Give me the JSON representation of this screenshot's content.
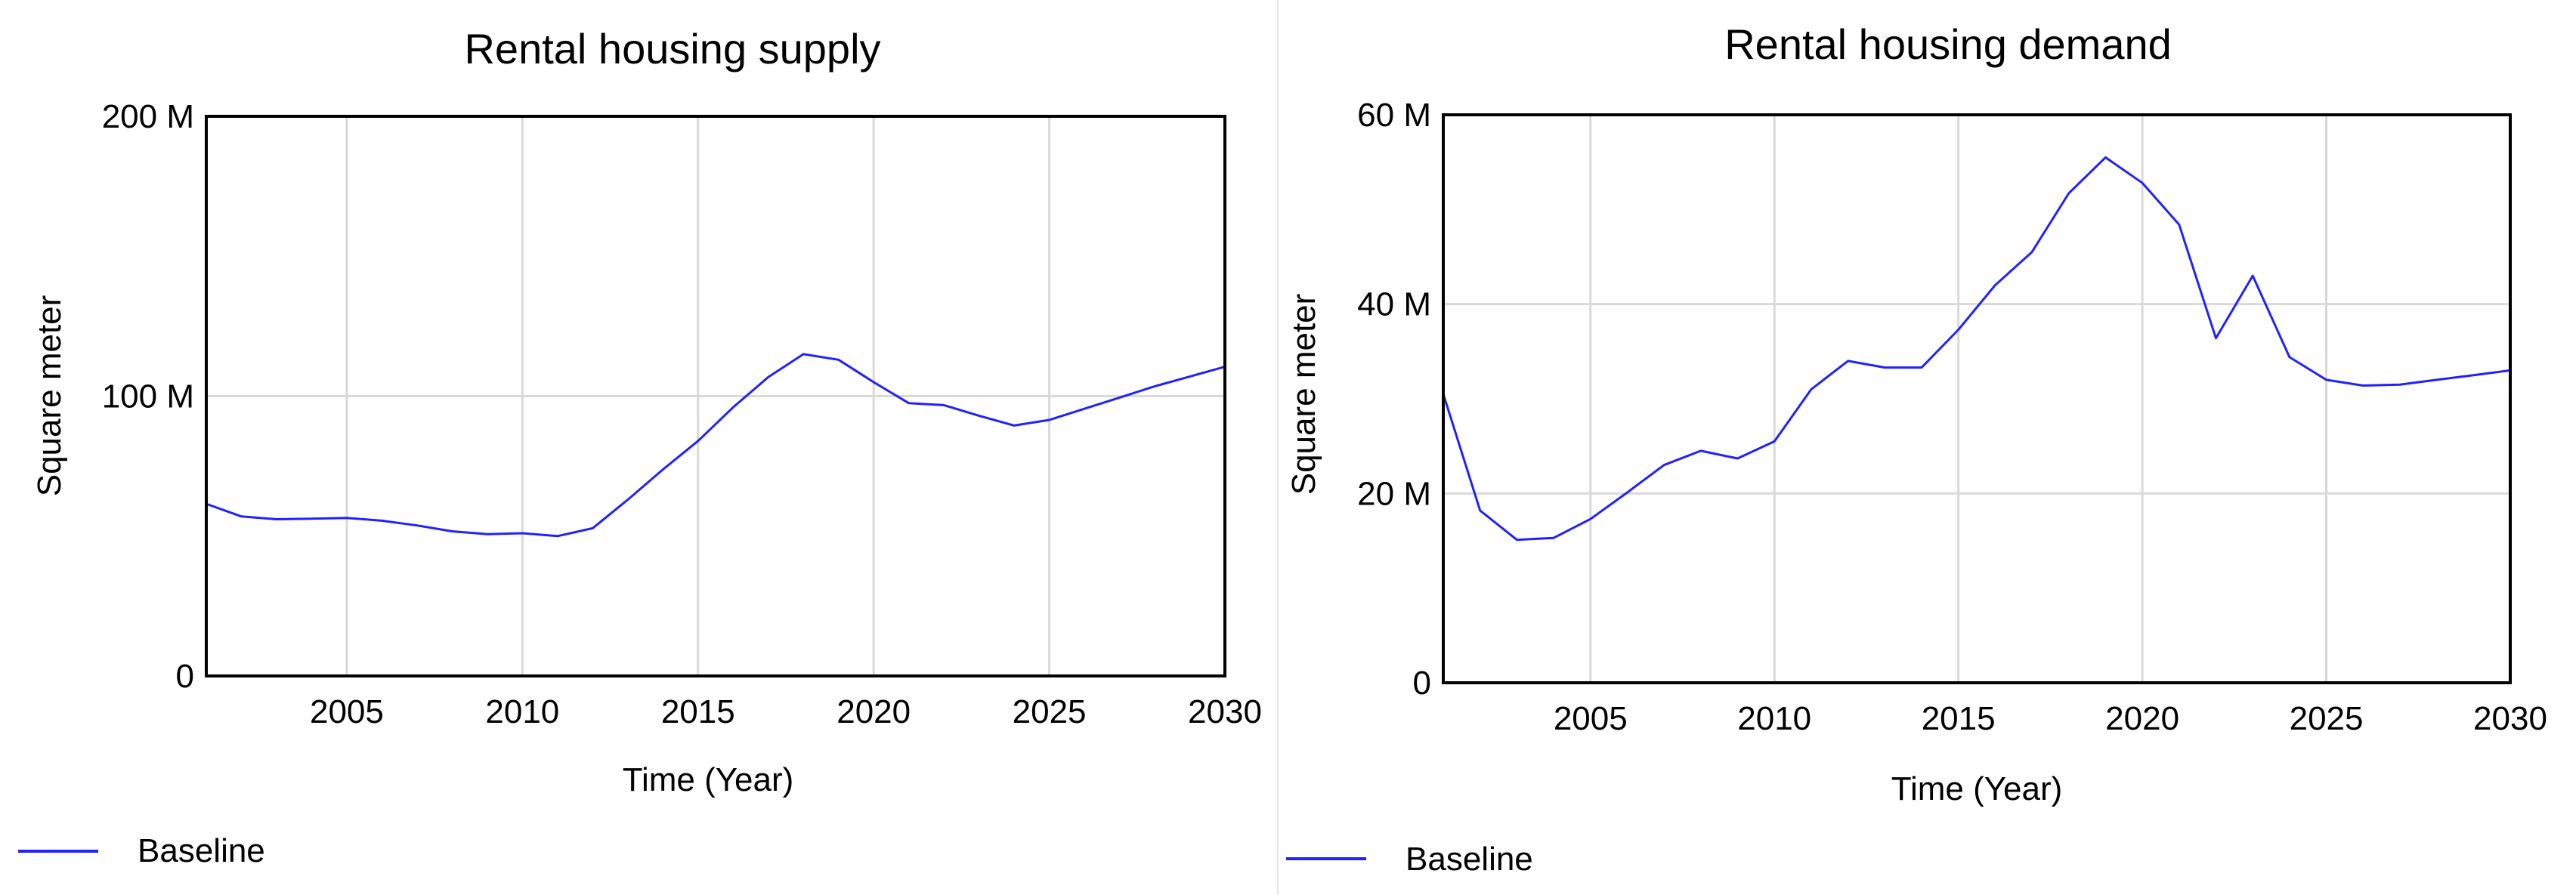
{
  "chart_data": [
    {
      "type": "line",
      "title": "Rental housing supply",
      "xlabel": "Time (Year)",
      "ylabel": "Square meter",
      "xlim": [
        2001,
        2030
      ],
      "ylim": [
        0,
        200000000
      ],
      "x_ticks": [
        2005,
        2010,
        2015,
        2020,
        2025,
        2030
      ],
      "x_tick_labels": [
        "2005",
        "2010",
        "2015",
        "2020",
        "2025",
        "2030"
      ],
      "y_ticks": [
        0,
        100000000,
        200000000
      ],
      "y_tick_labels": [
        "0",
        "100 M",
        "200 M"
      ],
      "grid": true,
      "legend_position": "bottom-left",
      "series_color": "#2121ff",
      "series": [
        {
          "name": "Baseline",
          "x": [
            2001,
            2002,
            2003,
            2004,
            2005,
            2006,
            2007,
            2008,
            2009,
            2010,
            2011,
            2012,
            2013,
            2014,
            2015,
            2016,
            2017,
            2018,
            2019,
            2020,
            2021,
            2022,
            2023,
            2024,
            2025,
            2026,
            2027,
            2028,
            2029,
            2030
          ],
          "y": [
            61500000,
            57000000,
            56000000,
            56200000,
            56500000,
            55500000,
            53800000,
            51700000,
            50700000,
            51000000,
            50000000,
            52800000,
            63000000,
            73800000,
            84000000,
            96000000,
            106800000,
            115000000,
            113000000,
            105000000,
            97500000,
            96800000,
            93000000,
            89500000,
            91500000,
            95500000,
            99500000,
            103500000,
            107000000,
            110500000
          ]
        }
      ]
    },
    {
      "type": "line",
      "title": "Rental housing demand",
      "xlabel": "Time (Year)",
      "ylabel": "Square meter",
      "xlim": [
        2001,
        2030
      ],
      "ylim": [
        0,
        60000000
      ],
      "x_ticks": [
        2005,
        2010,
        2015,
        2020,
        2025,
        2030
      ],
      "x_tick_labels": [
        "2005",
        "2010",
        "2015",
        "2020",
        "2025",
        "2030"
      ],
      "y_ticks": [
        0,
        20000000,
        40000000,
        60000000
      ],
      "y_tick_labels": [
        "0",
        "20 M",
        "40 M",
        "60 M"
      ],
      "grid": true,
      "legend_position": "bottom-left",
      "series_color": "#2121ff",
      "series": [
        {
          "name": "Baseline",
          "x": [
            2001,
            2002,
            2003,
            2004,
            2005,
            2006,
            2007,
            2008,
            2009,
            2010,
            2011,
            2012,
            2013,
            2014,
            2015,
            2016,
            2017,
            2018,
            2019,
            2020,
            2021,
            2022,
            2023,
            2024,
            2025,
            2026,
            2027,
            2028,
            2029,
            2030
          ],
          "y": [
            30500000,
            18200000,
            15100000,
            15300000,
            17300000,
            20100000,
            23000000,
            24500000,
            23700000,
            25500000,
            31000000,
            34000000,
            33300000,
            33300000,
            37300000,
            42000000,
            45500000,
            51700000,
            55500000,
            52800000,
            48400000,
            36400000,
            43000000,
            34400000,
            32000000,
            31400000,
            31500000,
            32000000,
            32500000,
            33000000
          ]
        }
      ]
    }
  ]
}
